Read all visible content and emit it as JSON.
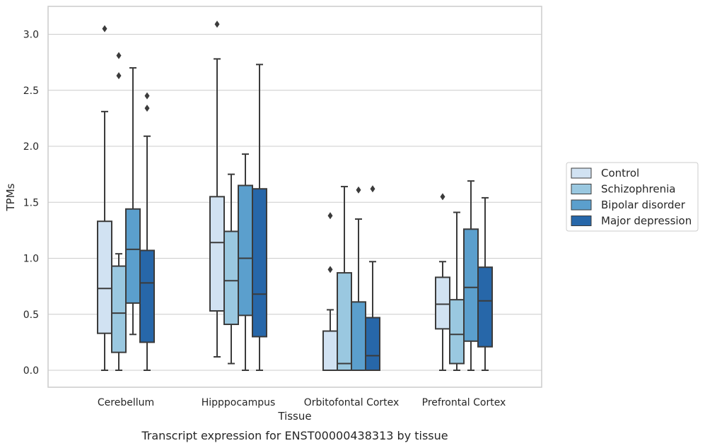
{
  "chart_data": {
    "type": "boxplot",
    "xlabel": "Tissue",
    "ylabel": "TPMs",
    "caption": "Transcript expression for ENST00000438313 by tissue",
    "ylim": [
      -0.15,
      3.25
    ],
    "yticks": [
      "0.0",
      "0.5",
      "1.0",
      "1.5",
      "2.0",
      "2.5",
      "3.0"
    ],
    "grid": "horizontal",
    "legend_position": "right",
    "categories": [
      "Cerebellum",
      "Hipppocampus",
      "Orbitofontal Cortex",
      "Prefrontal Cortex"
    ],
    "series": [
      {
        "name": "Control",
        "color": "#d1e2f2",
        "boxes": [
          {
            "whislo": 0.0,
            "q1": 0.33,
            "med": 0.73,
            "q3": 1.33,
            "whishi": 2.31,
            "fliers": [
              3.05
            ]
          },
          {
            "whislo": 0.12,
            "q1": 0.53,
            "med": 1.14,
            "q3": 1.55,
            "whishi": 2.78,
            "fliers": [
              3.09
            ]
          },
          {
            "whislo": 0.0,
            "q1": 0.0,
            "med": 0.0,
            "q3": 0.35,
            "whishi": 0.54,
            "fliers": [
              0.9,
              1.38
            ]
          },
          {
            "whislo": 0.0,
            "q1": 0.37,
            "med": 0.59,
            "q3": 0.83,
            "whishi": 0.97,
            "fliers": [
              1.55
            ]
          }
        ]
      },
      {
        "name": "Schizophrenia",
        "color": "#9ac8e0",
        "boxes": [
          {
            "whislo": 0.0,
            "q1": 0.16,
            "med": 0.51,
            "q3": 0.93,
            "whishi": 1.04,
            "fliers": [
              2.63,
              2.81
            ]
          },
          {
            "whislo": 0.06,
            "q1": 0.41,
            "med": 0.8,
            "q3": 1.24,
            "whishi": 1.75,
            "fliers": []
          },
          {
            "whislo": 0.0,
            "q1": 0.0,
            "med": 0.06,
            "q3": 0.87,
            "whishi": 1.64,
            "fliers": []
          },
          {
            "whislo": 0.0,
            "q1": 0.06,
            "med": 0.32,
            "q3": 0.63,
            "whishi": 1.41,
            "fliers": []
          }
        ]
      },
      {
        "name": "Bipolar disorder",
        "color": "#5b9fcd",
        "boxes": [
          {
            "whislo": 0.32,
            "q1": 0.6,
            "med": 1.08,
            "q3": 1.44,
            "whishi": 2.7,
            "fliers": []
          },
          {
            "whislo": 0.0,
            "q1": 0.49,
            "med": 1.0,
            "q3": 1.65,
            "whishi": 1.93,
            "fliers": []
          },
          {
            "whislo": 0.0,
            "q1": 0.0,
            "med": 0.0,
            "q3": 0.61,
            "whishi": 1.35,
            "fliers": [
              1.61
            ]
          },
          {
            "whislo": 0.0,
            "q1": 0.26,
            "med": 0.74,
            "q3": 1.26,
            "whishi": 1.69,
            "fliers": []
          }
        ]
      },
      {
        "name": "Major depression",
        "color": "#2767a9",
        "boxes": [
          {
            "whislo": 0.0,
            "q1": 0.25,
            "med": 0.78,
            "q3": 1.07,
            "whishi": 2.09,
            "fliers": [
              2.34,
              2.45
            ]
          },
          {
            "whislo": 0.0,
            "q1": 0.3,
            "med": 0.68,
            "q3": 1.62,
            "whishi": 2.73,
            "fliers": []
          },
          {
            "whislo": 0.0,
            "q1": 0.0,
            "med": 0.13,
            "q3": 0.47,
            "whishi": 0.97,
            "fliers": [
              1.62
            ]
          },
          {
            "whislo": 0.0,
            "q1": 0.21,
            "med": 0.62,
            "q3": 0.92,
            "whishi": 1.54,
            "fliers": []
          }
        ]
      }
    ]
  }
}
